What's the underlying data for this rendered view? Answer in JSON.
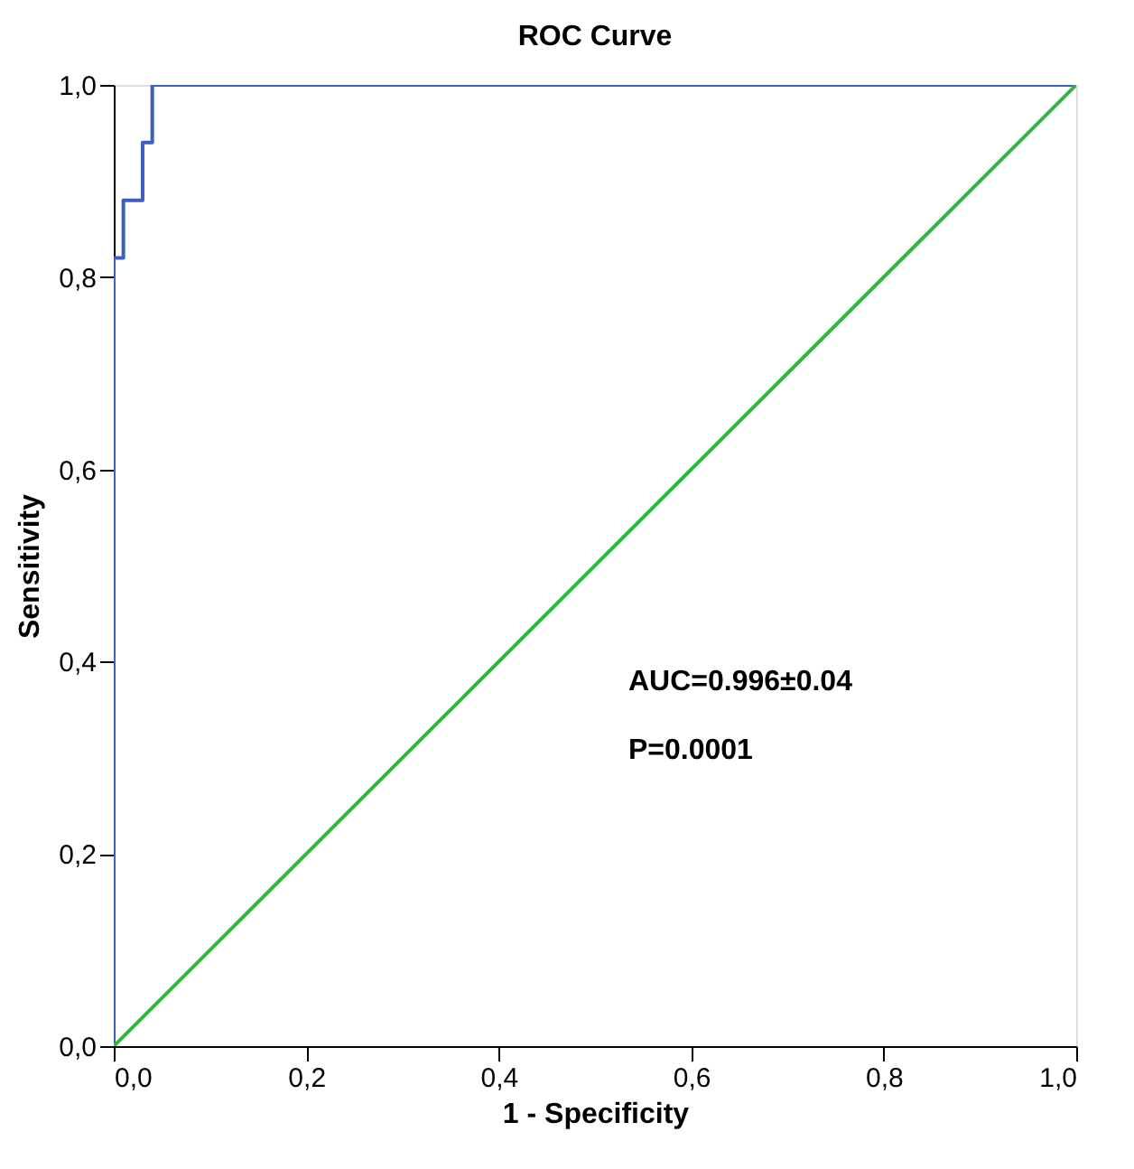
{
  "chart_data": {
    "type": "step",
    "title": "ROC Curve",
    "xlabel": "1 - Specificity",
    "ylabel": "Sensitivity",
    "series": [
      {
        "color": "#3f5fbf",
        "x": [
          0,
          0,
          0.01,
          0.03,
          0.04,
          1
        ],
        "values": [
          0,
          0.82,
          0.88,
          0.94,
          1,
          1
        ]
      },
      {
        "type": "line",
        "color": "#2cb83a",
        "x": [
          0,
          1
        ],
        "values": [
          0,
          1
        ]
      }
    ],
    "xlim": [
      0,
      1
    ],
    "ylim": [
      0,
      1
    ],
    "xticks": [
      {
        "value": 0,
        "label": "0,0"
      },
      {
        "value": 0.2,
        "label": "0,2"
      },
      {
        "value": 0.4,
        "label": "0,4"
      },
      {
        "value": 0.6,
        "label": "0,6"
      },
      {
        "value": 0.8,
        "label": "0,8"
      },
      {
        "value": 1,
        "label": "1,0"
      }
    ],
    "yticks": [
      {
        "value": 0,
        "label": "0,0"
      },
      {
        "value": 0.2,
        "label": "0,2"
      },
      {
        "value": 0.4,
        "label": "0,4"
      },
      {
        "value": 0.6,
        "label": "0,6"
      },
      {
        "value": 0.8,
        "label": "0,8"
      },
      {
        "value": 1,
        "label": "1,0"
      }
    ],
    "grid": false,
    "marker": "none",
    "line_style": "solid",
    "annotations": [
      "AUC=0.996±0.04",
      "P=0.0001"
    ]
  }
}
